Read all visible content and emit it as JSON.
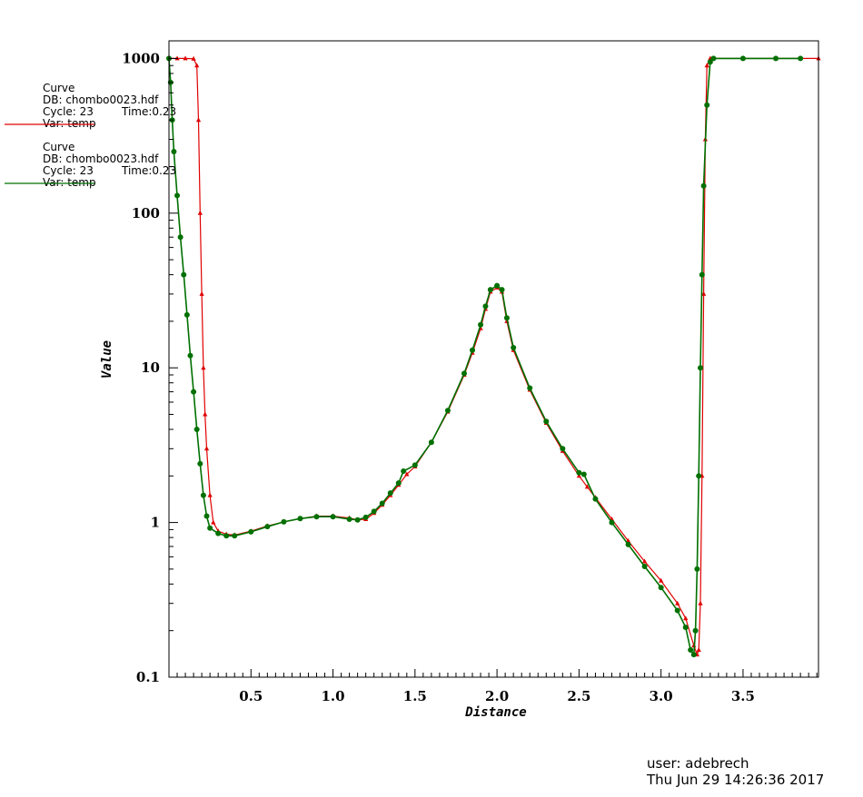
{
  "chart_data": {
    "type": "line",
    "xlabel": "Distance",
    "ylabel": "Value",
    "y_scale": "log",
    "xlim": [
      0.0,
      3.96
    ],
    "ylim": [
      0.1,
      1300
    ],
    "x_ticks": [
      "0.5",
      "1.0",
      "1.5",
      "2.0",
      "2.5",
      "3.0",
      "3.5"
    ],
    "y_ticks": [
      "0.1",
      "1",
      "10",
      "100",
      "1000"
    ],
    "grid": false,
    "series": [
      {
        "color": "#e00000",
        "marker": "triangle",
        "points": [
          [
            0.0,
            1000
          ],
          [
            0.05,
            1000
          ],
          [
            0.1,
            1000
          ],
          [
            0.15,
            995
          ],
          [
            0.17,
            900
          ],
          [
            0.18,
            400
          ],
          [
            0.19,
            100
          ],
          [
            0.2,
            30
          ],
          [
            0.21,
            10
          ],
          [
            0.22,
            5
          ],
          [
            0.23,
            3
          ],
          [
            0.25,
            1.5
          ],
          [
            0.27,
            1.0
          ],
          [
            0.3,
            0.88
          ],
          [
            0.35,
            0.84
          ],
          [
            0.4,
            0.83
          ],
          [
            0.5,
            0.88
          ],
          [
            0.6,
            0.95
          ],
          [
            0.7,
            1.01
          ],
          [
            0.8,
            1.06
          ],
          [
            0.9,
            1.1
          ],
          [
            1.0,
            1.1
          ],
          [
            1.1,
            1.07
          ],
          [
            1.15,
            1.04
          ],
          [
            1.2,
            1.05
          ],
          [
            1.25,
            1.15
          ],
          [
            1.3,
            1.3
          ],
          [
            1.35,
            1.5
          ],
          [
            1.4,
            1.75
          ],
          [
            1.45,
            2.05
          ],
          [
            1.5,
            2.3
          ],
          [
            1.6,
            3.3
          ],
          [
            1.7,
            5.2
          ],
          [
            1.8,
            9.0
          ],
          [
            1.85,
            12.5
          ],
          [
            1.9,
            18
          ],
          [
            1.93,
            24
          ],
          [
            1.96,
            31
          ],
          [
            2.0,
            33
          ],
          [
            2.03,
            31
          ],
          [
            2.06,
            20
          ],
          [
            2.1,
            13
          ],
          [
            2.2,
            7.2
          ],
          [
            2.3,
            4.4
          ],
          [
            2.4,
            2.9
          ],
          [
            2.5,
            2.0
          ],
          [
            2.55,
            1.7
          ],
          [
            2.6,
            1.45
          ],
          [
            2.7,
            1.05
          ],
          [
            2.8,
            0.76
          ],
          [
            2.9,
            0.56
          ],
          [
            3.0,
            0.42
          ],
          [
            3.1,
            0.3
          ],
          [
            3.15,
            0.24
          ],
          [
            3.2,
            0.16
          ],
          [
            3.22,
            0.14
          ],
          [
            3.23,
            0.15
          ],
          [
            3.24,
            0.3
          ],
          [
            3.25,
            2
          ],
          [
            3.26,
            30
          ],
          [
            3.27,
            300
          ],
          [
            3.28,
            900
          ],
          [
            3.3,
            1000
          ],
          [
            3.5,
            1000
          ],
          [
            3.7,
            1000
          ],
          [
            3.96,
            1000
          ]
        ]
      },
      {
        "color": "#007000",
        "marker": "circle",
        "points": [
          [
            0.0,
            1000
          ],
          [
            0.01,
            700
          ],
          [
            0.02,
            400
          ],
          [
            0.03,
            250
          ],
          [
            0.05,
            130
          ],
          [
            0.07,
            70
          ],
          [
            0.09,
            40
          ],
          [
            0.11,
            22
          ],
          [
            0.13,
            12
          ],
          [
            0.15,
            7
          ],
          [
            0.17,
            4
          ],
          [
            0.19,
            2.4
          ],
          [
            0.21,
            1.5
          ],
          [
            0.23,
            1.1
          ],
          [
            0.25,
            0.92
          ],
          [
            0.3,
            0.85
          ],
          [
            0.35,
            0.82
          ],
          [
            0.4,
            0.82
          ],
          [
            0.5,
            0.87
          ],
          [
            0.6,
            0.94
          ],
          [
            0.7,
            1.01
          ],
          [
            0.8,
            1.06
          ],
          [
            0.9,
            1.09
          ],
          [
            1.0,
            1.09
          ],
          [
            1.1,
            1.05
          ],
          [
            1.15,
            1.04
          ],
          [
            1.2,
            1.08
          ],
          [
            1.25,
            1.18
          ],
          [
            1.3,
            1.33
          ],
          [
            1.35,
            1.55
          ],
          [
            1.4,
            1.8
          ],
          [
            1.43,
            2.15
          ],
          [
            1.5,
            2.35
          ],
          [
            1.6,
            3.3
          ],
          [
            1.7,
            5.3
          ],
          [
            1.8,
            9.2
          ],
          [
            1.85,
            13
          ],
          [
            1.9,
            19
          ],
          [
            1.93,
            25
          ],
          [
            1.96,
            32
          ],
          [
            2.0,
            34
          ],
          [
            2.03,
            32
          ],
          [
            2.06,
            21
          ],
          [
            2.1,
            13.5
          ],
          [
            2.2,
            7.4
          ],
          [
            2.3,
            4.5
          ],
          [
            2.4,
            3.0
          ],
          [
            2.5,
            2.1
          ],
          [
            2.53,
            2.05
          ],
          [
            2.6,
            1.42
          ],
          [
            2.7,
            1.0
          ],
          [
            2.8,
            0.72
          ],
          [
            2.9,
            0.52
          ],
          [
            3.0,
            0.38
          ],
          [
            3.1,
            0.27
          ],
          [
            3.15,
            0.21
          ],
          [
            3.18,
            0.15
          ],
          [
            3.2,
            0.14
          ],
          [
            3.21,
            0.2
          ],
          [
            3.22,
            0.5
          ],
          [
            3.23,
            2
          ],
          [
            3.24,
            10
          ],
          [
            3.25,
            40
          ],
          [
            3.26,
            150
          ],
          [
            3.28,
            500
          ],
          [
            3.3,
            950
          ],
          [
            3.32,
            1000
          ],
          [
            3.5,
            1000
          ],
          [
            3.7,
            1000
          ],
          [
            3.85,
            1000
          ]
        ]
      }
    ],
    "legend": [
      {
        "lines": [
          "Curve",
          "DB: chombo0023.hdf",
          "Cycle: 23",
          "Var: temp"
        ],
        "time": "Time:0.23",
        "color": "#e00000"
      },
      {
        "lines": [
          "Curve",
          "DB: chombo0023.hdf",
          "Cycle: 23",
          "Var: temp"
        ],
        "time": "Time:0.23",
        "color": "#007000"
      }
    ]
  },
  "footer": {
    "user": "user: adebrech",
    "date": "Thu Jun 29 14:26:36 2017"
  }
}
